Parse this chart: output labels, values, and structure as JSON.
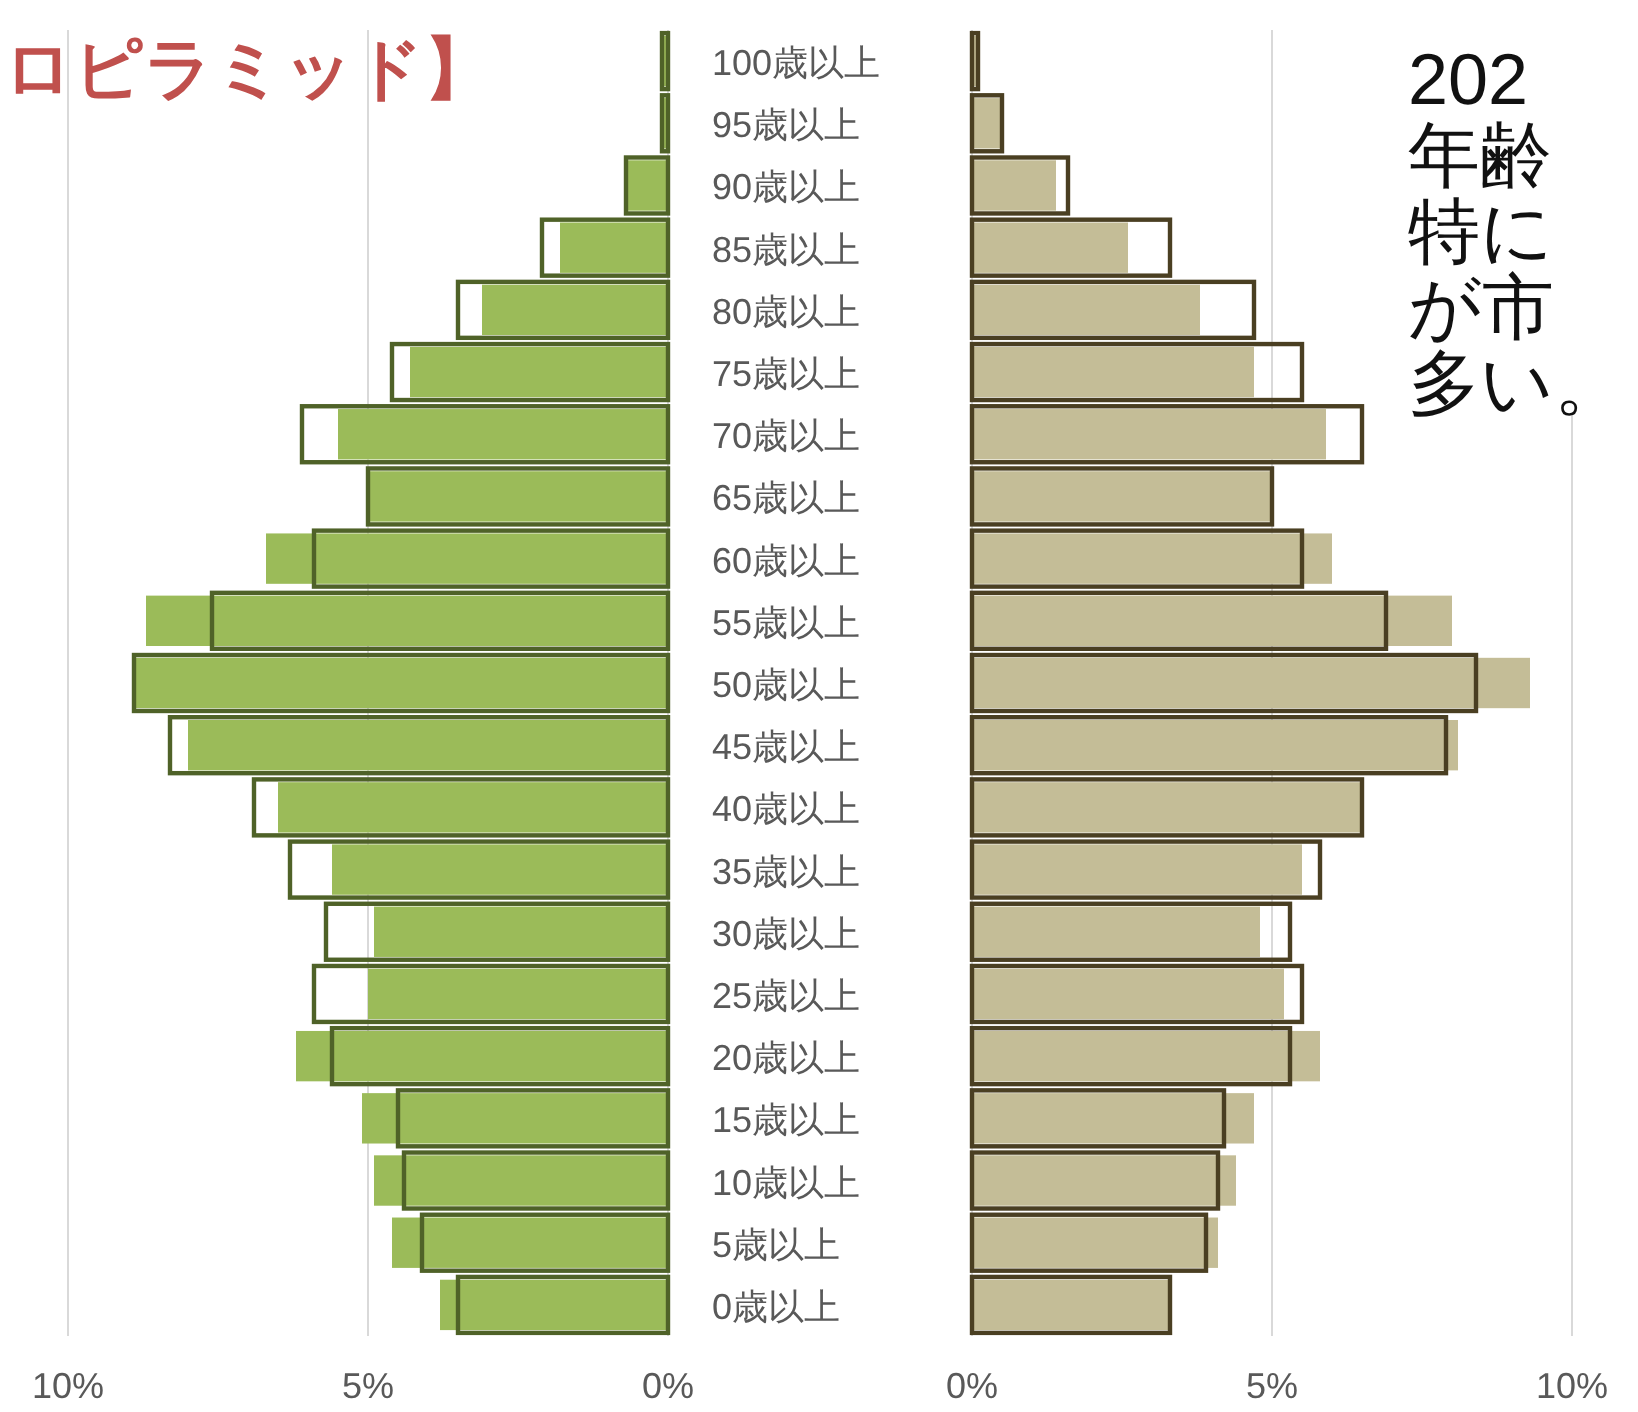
{
  "chart_data": [
    {
      "type": "bar",
      "orientation": "horizontal",
      "title": "ロピラミッド】",
      "categories": [
        "100歳以上",
        "95歳以上",
        "90歳以上",
        "85歳以上",
        "80歳以上",
        "75歳以上",
        "70歳以上",
        "65歳以上",
        "60歳以上",
        "55歳以上",
        "50歳以上",
        "45歳以上",
        "40歳以上",
        "35歳以上",
        "30歳以上",
        "25歳以上",
        "20歳以上",
        "15歳以上",
        "10歳以上",
        "5歳以上",
        "0歳以上"
      ],
      "series": [
        {
          "color": "#9bbb59",
          "values": [
            0.1,
            0.1,
            0.7,
            1.8,
            3.1,
            4.3,
            5.5,
            5.0,
            6.7,
            8.7,
            8.9,
            8.0,
            6.5,
            5.6,
            4.9,
            5.0,
            6.2,
            5.1,
            4.9,
            4.6,
            3.8
          ]
        },
        {
          "color": "#4f6228",
          "values": [
            0.1,
            0.1,
            0.7,
            2.1,
            3.5,
            4.6,
            6.1,
            5.0,
            5.9,
            7.6,
            8.9,
            8.3,
            6.9,
            6.3,
            5.7,
            5.9,
            5.6,
            4.5,
            4.4,
            4.1,
            3.5
          ]
        }
      ],
      "xlim": [
        10,
        0
      ],
      "xticks": [
        {
          "value": 10,
          "label": "10%"
        },
        {
          "value": 5,
          "label": "5%"
        },
        {
          "value": 0,
          "label": "0%"
        }
      ],
      "grid": "x"
    },
    {
      "type": "bar",
      "orientation": "horizontal",
      "categories": [
        null,
        null,
        null,
        null,
        null,
        null,
        null,
        null,
        null,
        null,
        null,
        null,
        null,
        null,
        null,
        null,
        null,
        null,
        null,
        null,
        null
      ],
      "series": [
        {
          "color": "#c4bd97",
          "values": [
            0.1,
            0.5,
            1.4,
            2.6,
            3.8,
            4.7,
            5.9,
            5.0,
            6.0,
            8.0,
            9.3,
            8.1,
            6.5,
            5.5,
            4.8,
            5.2,
            5.8,
            4.7,
            4.4,
            4.1,
            3.3
          ]
        },
        {
          "color": "#4a3f22",
          "values": [
            0.1,
            0.5,
            1.6,
            3.3,
            4.7,
            5.5,
            6.5,
            5.0,
            5.5,
            6.9,
            8.4,
            7.9,
            6.5,
            5.8,
            5.3,
            5.5,
            5.3,
            4.2,
            4.1,
            3.9,
            3.3
          ]
        }
      ],
      "xlim": [
        0,
        10
      ],
      "xticks": [
        {
          "value": 0,
          "label": "0%"
        },
        {
          "value": 5,
          "label": "5%"
        },
        {
          "value": 10,
          "label": "10%"
        }
      ],
      "grid": "x",
      "tick_labels": "x",
      "annotations": [
        "202",
        "年齢",
        "特に",
        "が市",
        "多い。"
      ]
    }
  ]
}
